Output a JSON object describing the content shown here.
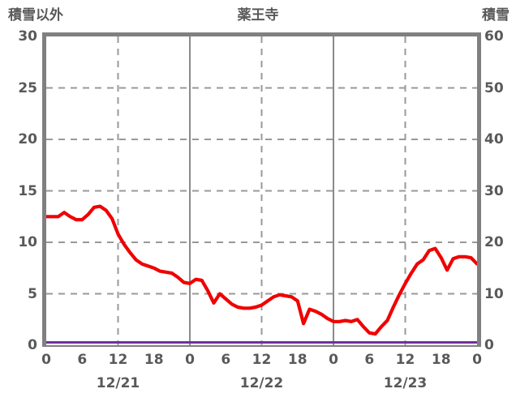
{
  "header": {
    "left_axis_title": "積雪以外",
    "title": "薬王寺",
    "right_axis_title": "積雪"
  },
  "colors": {
    "temperature_line": "#f00000",
    "snow_line": "#7030a0",
    "frame": "#808080",
    "grid_dashed": "#999999",
    "grid_solid": "#8a8a8a",
    "text": "#595959",
    "background": "#ffffff"
  },
  "chart_data": {
    "type": "line",
    "title": "薬王寺",
    "grid": true,
    "legend": "none",
    "left_axis": {
      "label": "積雪以外",
      "min": 0,
      "max": 30,
      "ticks": [
        30,
        25,
        20,
        15,
        10,
        5,
        0
      ]
    },
    "right_axis": {
      "label": "積雪",
      "min": 0,
      "max": 60,
      "ticks": [
        60,
        50,
        40,
        30,
        20,
        10,
        0
      ]
    },
    "x_axis": {
      "range_hours": [
        0,
        72
      ],
      "hour_tick_step": 6,
      "hour_tick_labels": [
        "0",
        "6",
        "12",
        "18",
        "0",
        "6",
        "12",
        "18",
        "0",
        "6",
        "12",
        "18",
        "0"
      ],
      "date_labels": [
        "12/21",
        "12/22",
        "12/23"
      ],
      "dashed_gridline_hours": [
        12,
        36,
        60
      ],
      "solid_gridline_hours": [
        24,
        48
      ],
      "dashed_value_gridlines": [
        5,
        10,
        15,
        20,
        25
      ]
    },
    "series": [
      {
        "name": "積雪以外",
        "axis": "left",
        "color": "#f00000",
        "x_start_hour": 0,
        "x_step_hours": 1,
        "values": [
          12.5,
          12.5,
          12.5,
          12.9,
          12.5,
          12.2,
          12.2,
          12.7,
          13.4,
          13.5,
          13.1,
          12.3,
          10.8,
          9.8,
          9.0,
          8.3,
          7.9,
          7.7,
          7.5,
          7.2,
          7.1,
          7.0,
          6.6,
          6.1,
          6.0,
          6.4,
          6.3,
          5.3,
          4.1,
          5.0,
          4.5,
          4.0,
          3.7,
          3.6,
          3.6,
          3.7,
          3.9,
          4.3,
          4.7,
          4.9,
          4.8,
          4.7,
          4.3,
          2.1,
          3.5,
          3.3,
          3.0,
          2.6,
          2.3,
          2.3,
          2.4,
          2.3,
          2.5,
          1.8,
          1.2,
          1.1,
          1.8,
          2.4,
          3.7,
          4.9,
          6.0,
          7.0,
          7.9,
          8.3,
          9.2,
          9.4,
          8.5,
          7.3,
          8.4,
          8.6,
          8.6,
          8.5,
          7.9
        ]
      },
      {
        "name": "積雪",
        "axis": "right",
        "color": "#7030a0",
        "constant_value": 0
      }
    ]
  }
}
